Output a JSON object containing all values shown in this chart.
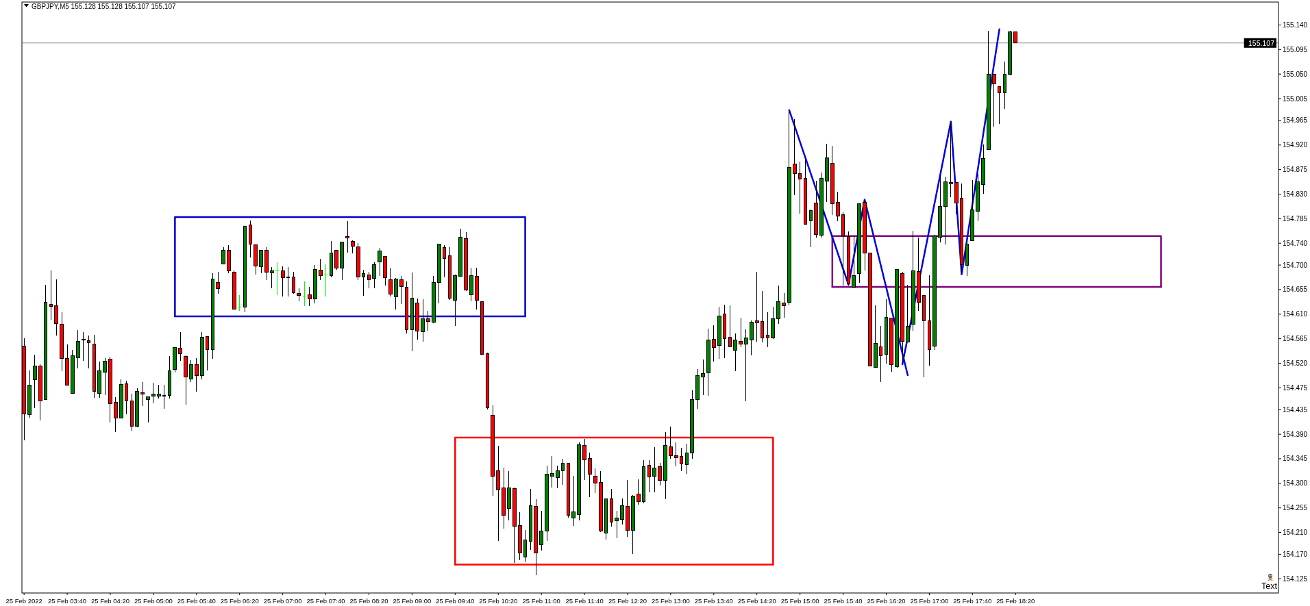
{
  "chart_data": {
    "type": "candlestick",
    "title": "GBPJPY,M5 155.128 155.128 155.107 155.107",
    "color": "#000000",
    "x": [
      "2022-02-25T03:00",
      "2022-02-25T03:05",
      "2022-02-25T03:10",
      "2022-02-25T03:15",
      "2022-02-25T03:20",
      "2022-02-25T03:25",
      "2022-02-25T03:30",
      "2022-02-25T03:35",
      "2022-02-25T03:40",
      "2022-02-25T03:45",
      "2022-02-25T03:50",
      "2022-02-25T03:55",
      "2022-02-25T04:00",
      "2022-02-25T04:05",
      "2022-02-25T04:10",
      "2022-02-25T04:15",
      "2022-02-25T04:20",
      "2022-02-25T04:25",
      "2022-02-25T04:30",
      "2022-02-25T04:35",
      "2022-02-25T04:40",
      "2022-02-25T04:45",
      "2022-02-25T04:50",
      "2022-02-25T04:55",
      "2022-02-25T05:00",
      "2022-02-25T05:05",
      "2022-02-25T05:10",
      "2022-02-25T05:15",
      "2022-02-25T05:20",
      "2022-02-25T05:25",
      "2022-02-25T05:30",
      "2022-02-25T05:35",
      "2022-02-25T05:40",
      "2022-02-25T05:45",
      "2022-02-25T05:50",
      "2022-02-25T05:55",
      "2022-02-25T06:00",
      "2022-02-25T06:05",
      "2022-02-25T06:10",
      "2022-02-25T06:15",
      "2022-02-25T06:20",
      "2022-02-25T06:25",
      "2022-02-25T06:30",
      "2022-02-25T06:35",
      "2022-02-25T06:40",
      "2022-02-25T06:45",
      "2022-02-25T06:50",
      "2022-02-25T06:55",
      "2022-02-25T07:00",
      "2022-02-25T07:05",
      "2022-02-25T07:10",
      "2022-02-25T07:15",
      "2022-02-25T07:20",
      "2022-02-25T07:25",
      "2022-02-25T07:30",
      "2022-02-25T07:35",
      "2022-02-25T07:40",
      "2022-02-25T07:45",
      "2022-02-25T07:50",
      "2022-02-25T07:55",
      "2022-02-25T08:00",
      "2022-02-25T08:05",
      "2022-02-25T08:10",
      "2022-02-25T08:15",
      "2022-02-25T08:20",
      "2022-02-25T08:25",
      "2022-02-25T08:30",
      "2022-02-25T08:35",
      "2022-02-25T08:40",
      "2022-02-25T08:45",
      "2022-02-25T08:50",
      "2022-02-25T08:55",
      "2022-02-25T09:00",
      "2022-02-25T09:05",
      "2022-02-25T09:10",
      "2022-02-25T09:15",
      "2022-02-25T09:20",
      "2022-02-25T09:25",
      "2022-02-25T09:30",
      "2022-02-25T09:35",
      "2022-02-25T09:40",
      "2022-02-25T09:45",
      "2022-02-25T09:50",
      "2022-02-25T09:55",
      "2022-02-25T10:00",
      "2022-02-25T10:05",
      "2022-02-25T10:10",
      "2022-02-25T10:15",
      "2022-02-25T10:20",
      "2022-02-25T10:25",
      "2022-02-25T10:30",
      "2022-02-25T10:35",
      "2022-02-25T10:40",
      "2022-02-25T10:45",
      "2022-02-25T10:50",
      "2022-02-25T10:55",
      "2022-02-25T11:00",
      "2022-02-25T11:05",
      "2022-02-25T11:10",
      "2022-02-25T11:15",
      "2022-02-25T11:20",
      "2022-02-25T11:25",
      "2022-02-25T11:30",
      "2022-02-25T11:35",
      "2022-02-25T11:40",
      "2022-02-25T11:45",
      "2022-02-25T11:50",
      "2022-02-25T11:55",
      "2022-02-25T12:00",
      "2022-02-25T12:05",
      "2022-02-25T12:10",
      "2022-02-25T12:15",
      "2022-02-25T12:20",
      "2022-02-25T12:25",
      "2022-02-25T12:30",
      "2022-02-25T12:35",
      "2022-02-25T12:40",
      "2022-02-25T12:45",
      "2022-02-25T12:50",
      "2022-02-25T12:55",
      "2022-02-25T13:00",
      "2022-02-25T13:05",
      "2022-02-25T13:10",
      "2022-02-25T13:15",
      "2022-02-25T13:20",
      "2022-02-25T13:25",
      "2022-02-25T13:30",
      "2022-02-25T13:35",
      "2022-02-25T13:40",
      "2022-02-25T13:45",
      "2022-02-25T13:50",
      "2022-02-25T13:55",
      "2022-02-25T14:00",
      "2022-02-25T14:05",
      "2022-02-25T14:10",
      "2022-02-25T14:15",
      "2022-02-25T14:20",
      "2022-02-25T14:25",
      "2022-02-25T14:30",
      "2022-02-25T14:35",
      "2022-02-25T14:40",
      "2022-02-25T14:45",
      "2022-02-25T14:50",
      "2022-02-25T14:55",
      "2022-02-25T15:00",
      "2022-02-25T15:05",
      "2022-02-25T15:10",
      "2022-02-25T15:15",
      "2022-02-25T15:20",
      "2022-02-25T15:25",
      "2022-02-25T15:30",
      "2022-02-25T15:35",
      "2022-02-25T15:40",
      "2022-02-25T15:45",
      "2022-02-25T15:50",
      "2022-02-25T15:55",
      "2022-02-25T16:00",
      "2022-02-25T16:05",
      "2022-02-25T16:10",
      "2022-02-25T16:15",
      "2022-02-25T16:20",
      "2022-02-25T16:25",
      "2022-02-25T16:30",
      "2022-02-25T16:35",
      "2022-02-25T16:40",
      "2022-02-25T16:45",
      "2022-02-25T16:50",
      "2022-02-25T16:55",
      "2022-02-25T17:00",
      "2022-02-25T17:05",
      "2022-02-25T17:10",
      "2022-02-25T17:15",
      "2022-02-25T17:20",
      "2022-02-25T17:25",
      "2022-02-25T17:30",
      "2022-02-25T17:35",
      "2022-02-25T17:40",
      "2022-02-25T17:45",
      "2022-02-25T17:50",
      "2022-02-25T17:55",
      "2022-02-25T18:00",
      "2022-02-25T18:05",
      "2022-02-25T18:10",
      "2022-02-25T18:15",
      "2022-02-25T18:20"
    ],
    "ohlc": [
      [
        154.552,
        154.566,
        154.379,
        154.427
      ],
      [
        154.426,
        154.507,
        154.42,
        154.48
      ],
      [
        154.49,
        154.536,
        154.438,
        154.515
      ],
      [
        154.515,
        154.518,
        154.415,
        154.451
      ],
      [
        154.454,
        154.664,
        154.453,
        154.632
      ],
      [
        154.628,
        154.69,
        154.6,
        154.624
      ],
      [
        154.626,
        154.674,
        154.571,
        154.593
      ],
      [
        154.591,
        154.614,
        154.506,
        154.529
      ],
      [
        154.529,
        154.555,
        154.479,
        154.48
      ],
      [
        154.465,
        154.545,
        154.464,
        154.534
      ],
      [
        154.53,
        154.581,
        154.511,
        154.56
      ],
      [
        154.563,
        154.577,
        154.525,
        154.564
      ],
      [
        154.561,
        154.571,
        154.511,
        154.558
      ],
      [
        154.555,
        154.572,
        154.457,
        154.469
      ],
      [
        154.465,
        154.523,
        154.457,
        154.506
      ],
      [
        154.504,
        154.53,
        154.462,
        154.524
      ],
      [
        154.528,
        154.532,
        154.411,
        154.446
      ],
      [
        154.448,
        154.458,
        154.394,
        154.42
      ],
      [
        154.42,
        154.491,
        154.419,
        154.481
      ],
      [
        154.483,
        154.488,
        154.426,
        154.451
      ],
      [
        154.451,
        154.464,
        154.396,
        154.405
      ],
      [
        154.404,
        154.474,
        154.403,
        154.468
      ],
      [
        154.466,
        154.485,
        154.441,
        154.464
      ],
      [
        154.454,
        154.459,
        154.411,
        154.458
      ],
      [
        154.46,
        154.484,
        154.446,
        154.463
      ],
      [
        154.46,
        154.48,
        154.456,
        154.464
      ],
      [
        154.461,
        154.481,
        154.437,
        154.46
      ],
      [
        154.461,
        154.533,
        154.456,
        154.506
      ],
      [
        154.509,
        154.55,
        154.503,
        154.549
      ],
      [
        154.548,
        154.577,
        154.525,
        154.537
      ],
      [
        154.532,
        154.535,
        154.444,
        154.495
      ],
      [
        154.491,
        154.526,
        154.486,
        154.518
      ],
      [
        154.517,
        154.529,
        154.468,
        154.498
      ],
      [
        154.498,
        154.577,
        154.491,
        154.568
      ],
      [
        154.569,
        154.57,
        154.507,
        154.545
      ],
      [
        154.545,
        154.685,
        154.528,
        154.675
      ],
      [
        154.668,
        154.687,
        154.648,
        154.657
      ],
      [
        154.702,
        154.733,
        154.701,
        154.727
      ],
      [
        154.727,
        154.736,
        154.685,
        154.689
      ],
      [
        154.687,
        154.69,
        154.618,
        154.619
      ],
      [
        154.623,
        154.645,
        154.616,
        154.623
      ],
      [
        154.623,
        154.772,
        154.613,
        154.771
      ],
      [
        154.774,
        154.782,
        154.714,
        154.738
      ],
      [
        154.737,
        154.738,
        154.682,
        154.698
      ],
      [
        154.697,
        154.728,
        154.685,
        154.727
      ],
      [
        154.727,
        154.733,
        154.673,
        154.687
      ],
      [
        154.686,
        154.696,
        154.657,
        154.69
      ],
      [
        154.69,
        154.705,
        154.645,
        154.69
      ],
      [
        154.69,
        154.698,
        154.642,
        154.677
      ],
      [
        154.678,
        154.696,
        154.643,
        154.677
      ],
      [
        154.678,
        154.687,
        154.648,
        154.649
      ],
      [
        154.648,
        154.657,
        154.634,
        154.644
      ],
      [
        154.643,
        154.67,
        154.625,
        154.643
      ],
      [
        154.646,
        154.66,
        154.625,
        154.638
      ],
      [
        154.638,
        154.7,
        154.63,
        154.692
      ],
      [
        154.691,
        154.711,
        154.672,
        154.681
      ],
      [
        154.682,
        154.701,
        154.643,
        154.682
      ],
      [
        154.681,
        154.744,
        154.678,
        154.722
      ],
      [
        154.727,
        154.728,
        154.691,
        154.695
      ],
      [
        154.695,
        154.743,
        154.673,
        154.742
      ],
      [
        154.752,
        154.781,
        154.723,
        154.75
      ],
      [
        154.744,
        154.745,
        154.721,
        154.735
      ],
      [
        154.733,
        154.74,
        154.673,
        154.678
      ],
      [
        154.678,
        154.691,
        154.644,
        154.685
      ],
      [
        154.682,
        154.687,
        154.657,
        154.673
      ],
      [
        154.676,
        154.705,
        154.657,
        154.701
      ],
      [
        154.706,
        154.732,
        154.68,
        154.726
      ],
      [
        154.716,
        154.717,
        154.662,
        154.677
      ],
      [
        154.673,
        154.695,
        154.643,
        154.647
      ],
      [
        154.642,
        154.676,
        154.619,
        154.675
      ],
      [
        154.673,
        154.68,
        154.628,
        154.661
      ],
      [
        154.659,
        154.67,
        154.575,
        154.581
      ],
      [
        154.581,
        154.686,
        154.542,
        154.639
      ],
      [
        154.631,
        154.639,
        154.563,
        154.579
      ],
      [
        154.578,
        154.637,
        154.559,
        154.601
      ],
      [
        154.602,
        154.616,
        154.58,
        154.597
      ],
      [
        154.595,
        154.68,
        154.593,
        154.668
      ],
      [
        154.668,
        154.739,
        154.63,
        154.738
      ],
      [
        154.732,
        154.737,
        154.678,
        154.712
      ],
      [
        154.717,
        154.733,
        154.636,
        154.639
      ],
      [
        154.636,
        154.682,
        154.588,
        154.681
      ],
      [
        154.68,
        154.766,
        154.679,
        154.751
      ],
      [
        154.748,
        154.76,
        154.653,
        154.654
      ],
      [
        154.646,
        154.695,
        154.633,
        154.681
      ],
      [
        154.68,
        154.695,
        154.619,
        154.636
      ],
      [
        154.633,
        154.634,
        154.535,
        154.536
      ],
      [
        154.538,
        154.539,
        154.435,
        154.438
      ],
      [
        154.425,
        154.443,
        154.277,
        154.313
      ],
      [
        154.323,
        154.369,
        154.194,
        154.288
      ],
      [
        154.292,
        154.329,
        154.217,
        154.242
      ],
      [
        154.254,
        154.323,
        154.232,
        154.292
      ],
      [
        154.291,
        154.292,
        154.154,
        154.221
      ],
      [
        154.223,
        154.247,
        154.159,
        154.172
      ],
      [
        154.165,
        154.215,
        154.156,
        154.196
      ],
      [
        154.194,
        154.29,
        154.178,
        154.259
      ],
      [
        154.258,
        154.271,
        154.132,
        154.173
      ],
      [
        154.188,
        154.249,
        154.177,
        154.213
      ],
      [
        154.212,
        154.333,
        154.194,
        154.317
      ],
      [
        154.313,
        154.35,
        154.292,
        154.318
      ],
      [
        154.311,
        154.332,
        154.291,
        154.323
      ],
      [
        154.323,
        154.345,
        154.297,
        154.337
      ],
      [
        154.337,
        154.338,
        154.237,
        154.242
      ],
      [
        154.236,
        154.313,
        154.222,
        154.248
      ],
      [
        154.243,
        154.375,
        154.232,
        154.371
      ],
      [
        154.37,
        154.381,
        154.306,
        154.343
      ],
      [
        154.345,
        154.356,
        154.275,
        154.317
      ],
      [
        154.313,
        154.328,
        154.282,
        154.301
      ],
      [
        154.302,
        154.323,
        154.211,
        154.213
      ],
      [
        154.209,
        154.272,
        154.197,
        154.271
      ],
      [
        154.272,
        154.29,
        154.221,
        154.229
      ],
      [
        154.231,
        154.249,
        154.2,
        154.237
      ],
      [
        154.234,
        154.272,
        154.224,
        154.259
      ],
      [
        154.258,
        154.306,
        154.202,
        154.214
      ],
      [
        154.214,
        154.278,
        154.17,
        154.277
      ],
      [
        154.28,
        154.307,
        154.261,
        154.266
      ],
      [
        154.267,
        154.342,
        154.263,
        154.33
      ],
      [
        154.333,
        154.343,
        154.283,
        154.312
      ],
      [
        154.313,
        154.366,
        154.284,
        154.328
      ],
      [
        154.33,
        154.337,
        154.296,
        154.305
      ],
      [
        154.306,
        154.394,
        154.271,
        154.369
      ],
      [
        154.367,
        154.404,
        154.345,
        154.351
      ],
      [
        154.35,
        154.375,
        154.331,
        154.347
      ],
      [
        154.349,
        154.365,
        154.323,
        154.335
      ],
      [
        154.334,
        154.372,
        154.317,
        154.356
      ],
      [
        154.356,
        154.471,
        154.345,
        154.454
      ],
      [
        154.454,
        154.509,
        154.436,
        154.498
      ],
      [
        154.495,
        154.527,
        154.462,
        154.501
      ],
      [
        154.502,
        154.584,
        154.46,
        154.563
      ],
      [
        154.564,
        154.59,
        154.523,
        154.549
      ],
      [
        154.553,
        154.623,
        154.528,
        154.607
      ],
      [
        154.611,
        154.627,
        154.53,
        154.565
      ],
      [
        154.568,
        154.626,
        154.549,
        154.55
      ],
      [
        154.544,
        154.574,
        154.505,
        154.563
      ],
      [
        154.56,
        154.603,
        154.549,
        154.555
      ],
      [
        154.555,
        154.582,
        154.45,
        154.566
      ],
      [
        154.563,
        154.598,
        154.534,
        154.595
      ],
      [
        154.598,
        154.687,
        154.56,
        154.594
      ],
      [
        154.597,
        154.652,
        154.558,
        154.567
      ],
      [
        154.572,
        154.614,
        154.549,
        154.567
      ],
      [
        154.566,
        154.623,
        154.564,
        154.602
      ],
      [
        154.602,
        154.662,
        154.592,
        154.633
      ],
      [
        154.631,
        154.649,
        154.604,
        154.626
      ],
      [
        154.632,
        154.983,
        154.626,
        154.879
      ],
      [
        154.885,
        154.968,
        154.828,
        154.868
      ],
      [
        154.868,
        154.889,
        154.794,
        154.858
      ],
      [
        154.859,
        154.893,
        154.774,
        154.775
      ],
      [
        154.781,
        154.802,
        154.733,
        154.8
      ],
      [
        154.814,
        154.854,
        154.75,
        154.756
      ],
      [
        154.755,
        154.87,
        154.75,
        154.859
      ],
      [
        154.854,
        154.922,
        154.815,
        154.896
      ],
      [
        154.886,
        154.919,
        154.792,
        154.813
      ],
      [
        154.815,
        154.834,
        154.78,
        154.79
      ],
      [
        154.792,
        154.797,
        154.663,
        154.754
      ],
      [
        154.752,
        154.762,
        154.663,
        154.665
      ],
      [
        154.659,
        154.752,
        154.658,
        154.681
      ],
      [
        154.685,
        154.813,
        154.667,
        154.812
      ],
      [
        154.815,
        154.818,
        154.69,
        154.722
      ],
      [
        154.722,
        154.723,
        154.514,
        154.515
      ],
      [
        154.513,
        154.626,
        154.512,
        154.556
      ],
      [
        154.55,
        154.589,
        154.486,
        154.534
      ],
      [
        154.536,
        154.637,
        154.519,
        154.604
      ],
      [
        154.603,
        154.604,
        154.504,
        154.518
      ],
      [
        154.514,
        154.693,
        154.512,
        154.692
      ],
      [
        154.685,
        154.688,
        154.525,
        154.56
      ],
      [
        154.559,
        154.664,
        154.558,
        154.588
      ],
      [
        154.591,
        154.763,
        154.58,
        154.69
      ],
      [
        154.688,
        154.75,
        154.616,
        154.632
      ],
      [
        154.644,
        154.645,
        154.494,
        154.598
      ],
      [
        154.598,
        154.681,
        154.516,
        154.545
      ],
      [
        154.551,
        154.755,
        154.544,
        154.754
      ],
      [
        154.751,
        154.865,
        154.742,
        154.808
      ],
      [
        154.807,
        154.862,
        154.738,
        154.853
      ],
      [
        154.851,
        154.961,
        154.824,
        154.849
      ],
      [
        154.851,
        154.852,
        154.793,
        154.814
      ],
      [
        154.823,
        154.85,
        154.686,
        154.701
      ],
      [
        154.7,
        154.744,
        154.68,
        154.739
      ],
      [
        154.745,
        154.856,
        154.744,
        154.801
      ],
      [
        154.799,
        154.867,
        154.781,
        154.853
      ],
      [
        154.847,
        154.921,
        154.83,
        154.895
      ],
      [
        154.912,
        155.129,
        154.911,
        155.049
      ],
      [
        155.049,
        155.05,
        154.954,
        155.032
      ],
      [
        155.027,
        155.028,
        154.959,
        155.016
      ],
      [
        155.016,
        155.073,
        154.986,
        155.049
      ],
      [
        155.049,
        155.129,
        155.048,
        155.127
      ],
      [
        155.128,
        155.128,
        155.107,
        155.107
      ]
    ],
    "colors": [
      "#ff0000",
      "#008000",
      "#008000",
      "#ff0000",
      "#008000",
      "#ff0000",
      "#ff0000",
      "#ff0000",
      "#ff0000",
      "#008000",
      "#008000",
      "#008000",
      "#ff0000",
      "#ff0000",
      "#008000",
      "#008000",
      "#ff0000",
      "#ff0000",
      "#008000",
      "#ff0000",
      "#ff0000",
      "#008000",
      "#ff0000",
      "#008000",
      "#008000",
      "#008000",
      "#ff0000",
      "#008000",
      "#008000",
      "#ff0000",
      "#ff0000",
      "#008000",
      "#ff0000",
      "#008000",
      "#ff0000",
      "#008000",
      "#ff0000",
      "#008000",
      "#ff0000",
      "#ff0000",
      "#00ff00",
      "#008000",
      "#ff0000",
      "#ff0000",
      "#008000",
      "#ff0000",
      "#008000",
      "#00ff00",
      "#ff0000",
      "#ff0000",
      "#ff0000",
      "#ff0000",
      "#00ff00",
      "#ff0000",
      "#008000",
      "#ff0000",
      "#00ff00",
      "#008000",
      "#ff0000",
      "#008000",
      "#ff0000",
      "#ff0000",
      "#ff0000",
      "#008000",
      "#ff0000",
      "#008000",
      "#008000",
      "#ff0000",
      "#ff0000",
      "#008000",
      "#ff0000",
      "#ff0000",
      "#008000",
      "#ff0000",
      "#008000",
      "#ff0000",
      "#008000",
      "#008000",
      "#ff0000",
      "#ff0000",
      "#008000",
      "#008000",
      "#ff0000",
      "#008000",
      "#ff0000",
      "#ff0000",
      "#ff0000",
      "#ff0000",
      "#ff0000",
      "#ff0000",
      "#008000",
      "#ff0000",
      "#ff0000",
      "#008000",
      "#008000",
      "#ff0000",
      "#008000",
      "#008000",
      "#008000",
      "#008000",
      "#008000",
      "#ff0000",
      "#008000",
      "#008000",
      "#ff0000",
      "#ff0000",
      "#ff0000",
      "#ff0000",
      "#008000",
      "#ff0000",
      "#008000",
      "#008000",
      "#ff0000",
      "#008000",
      "#ff0000",
      "#008000",
      "#ff0000",
      "#008000",
      "#ff0000",
      "#008000",
      "#ff0000",
      "#ff0000",
      "#ff0000",
      "#008000",
      "#008000",
      "#008000",
      "#008000",
      "#008000",
      "#ff0000",
      "#008000",
      "#ff0000",
      "#ff0000",
      "#008000",
      "#ff0000",
      "#008000",
      "#008000",
      "#ff0000",
      "#ff0000",
      "#ff0000",
      "#008000",
      "#008000",
      "#ff0000",
      "#008000",
      "#ff0000",
      "#ff0000",
      "#ff0000",
      "#008000",
      "#ff0000",
      "#008000",
      "#008000",
      "#ff0000",
      "#ff0000",
      "#ff0000",
      "#ff0000",
      "#008000",
      "#008000",
      "#ff0000",
      "#ff0000",
      "#008000",
      "#ff0000",
      "#008000",
      "#ff0000",
      "#008000",
      "#ff0000",
      "#008000",
      "#008000",
      "#ff0000",
      "#ff0000",
      "#ff0000",
      "#008000",
      "#008000",
      "#008000",
      "#ff0000",
      "#ff0000",
      "#ff0000",
      "#008000",
      "#008000",
      "#008000",
      "#008000",
      "#008000",
      "#ff0000",
      "#ff0000",
      "#008000",
      "#008000",
      "#ff0000"
    ],
    "series": [
      {
        "type": "line",
        "color": "#0000cc",
        "x": [
          "2022-02-25T05:20",
          "2022-02-25T05:20",
          "2022-02-25T10:45",
          "2022-02-25T10:45"
        ],
        "values": [
          154.606,
          154.788,
          154.788,
          154.606
        ]
      },
      {
        "type": "line",
        "color": "#0000cc",
        "x": [
          "2022-02-25T05:20",
          "2022-02-25T10:45"
        ],
        "values": [
          154.606,
          154.606
        ]
      },
      {
        "type": "line",
        "color": "#ff0000",
        "x": [
          "2022-02-25T09:40",
          "2022-02-25T09:40",
          "2022-02-25T14:35",
          "2022-02-25T14:35"
        ],
        "values": [
          154.151,
          154.384,
          154.384,
          154.151
        ]
      },
      {
        "type": "line",
        "color": "#ff0000",
        "x": [
          "2022-02-25T09:40",
          "2022-02-25T14:35"
        ],
        "values": [
          154.151,
          154.151
        ]
      },
      {
        "type": "line",
        "color": "#800080",
        "x": [
          "2022-02-25T15:30",
          "2022-02-25T15:30",
          "2022-02-25T20:35",
          "2022-02-25T20:35"
        ],
        "values": [
          154.66,
          154.753,
          154.753,
          154.66
        ]
      },
      {
        "type": "line",
        "color": "#800080",
        "x": [
          "2022-02-25T15:30",
          "2022-02-25T20:35"
        ],
        "values": [
          154.66,
          154.66
        ]
      },
      {
        "type": "line",
        "color": "#0000dd",
        "x": [
          "2022-02-25T14:50",
          "2022-02-25T15:45",
          "2022-02-25T16:00",
          "2022-02-25T16:40"
        ],
        "values": [
          154.984,
          154.664,
          154.82,
          154.498
        ]
      },
      {
        "type": "line",
        "color": "#0000dd",
        "x": [
          "2022-02-25T16:35",
          "2022-02-25T17:20",
          "2022-02-25T17:30",
          "2022-02-25T18:05"
        ],
        "values": [
          154.518,
          154.963,
          154.683,
          155.132
        ]
      }
    ],
    "ref_lines": [
      {
        "axis": "y",
        "value": 155.107,
        "label": "155.107",
        "color": "#778899"
      }
    ],
    "annotations": [
      "Text"
    ],
    "xlim": [
      "2022-02-25T02:58",
      "2022-02-25T22:24"
    ],
    "xticks": [
      {
        "value": "2022-02-25T03:00",
        "label": "25 Feb 2022"
      },
      {
        "value": "2022-02-25T03:40",
        "label": "25 Feb 03:40"
      },
      {
        "value": "2022-02-25T04:20",
        "label": "25 Feb 04:20"
      },
      {
        "value": "2022-02-25T05:00",
        "label": "25 Feb 05:00"
      },
      {
        "value": "2022-02-25T05:40",
        "label": "25 Feb 05:40"
      },
      {
        "value": "2022-02-25T06:20",
        "label": "25 Feb 06:20"
      },
      {
        "value": "2022-02-25T07:00",
        "label": "25 Feb 07:00"
      },
      {
        "value": "2022-02-25T07:40",
        "label": "25 Feb 07:40"
      },
      {
        "value": "2022-02-25T08:20",
        "label": "25 Feb 08:20"
      },
      {
        "value": "2022-02-25T09:00",
        "label": "25 Feb 09:00"
      },
      {
        "value": "2022-02-25T09:40",
        "label": "25 Feb 09:40"
      },
      {
        "value": "2022-02-25T10:20",
        "label": "25 Feb 10:20"
      },
      {
        "value": "2022-02-25T11:00",
        "label": "25 Feb 11:00"
      },
      {
        "value": "2022-02-25T11:40",
        "label": "25 Feb 11:40"
      },
      {
        "value": "2022-02-25T12:20",
        "label": "25 Feb 12:20"
      },
      {
        "value": "2022-02-25T13:00",
        "label": "25 Feb 13:00"
      },
      {
        "value": "2022-02-25T13:40",
        "label": "25 Feb 13:40"
      },
      {
        "value": "2022-02-25T14:20",
        "label": "25 Feb 14:20"
      },
      {
        "value": "2022-02-25T15:00",
        "label": "25 Feb 15:00"
      },
      {
        "value": "2022-02-25T15:40",
        "label": "25 Feb 15:40"
      },
      {
        "value": "2022-02-25T16:20",
        "label": "25 Feb 16:20"
      },
      {
        "value": "2022-02-25T17:00",
        "label": "25 Feb 17:00"
      },
      {
        "value": "2022-02-25T17:40",
        "label": "25 Feb 17:40"
      },
      {
        "value": "2022-02-25T18:20",
        "label": "25 Feb 18:20"
      }
    ],
    "ylim": [
      154.099,
      155.182
    ],
    "yticks": [
      154.125,
      {
        "value": 154.17,
        "label": "154.170"
      },
      {
        "value": 154.21,
        "label": "154.210"
      },
      154.255,
      {
        "value": 154.3,
        "label": "154.300"
      },
      154.345,
      {
        "value": 154.39,
        "label": "154.390"
      },
      154.435,
      154.475,
      {
        "value": 154.52,
        "label": "154.520"
      },
      154.565,
      {
        "value": 154.61,
        "label": "154.610"
      },
      154.655,
      {
        "value": 154.7,
        "label": "154.700"
      },
      {
        "value": 154.74,
        "label": "154.740"
      },
      154.785,
      {
        "value": 154.83,
        "label": "154.830"
      },
      154.875,
      {
        "value": 154.92,
        "label": "154.920"
      },
      154.965,
      155.005,
      {
        "value": 155.05,
        "label": "155.050"
      },
      155.095,
      {
        "value": 155.14,
        "label": "155.140"
      }
    ]
  }
}
